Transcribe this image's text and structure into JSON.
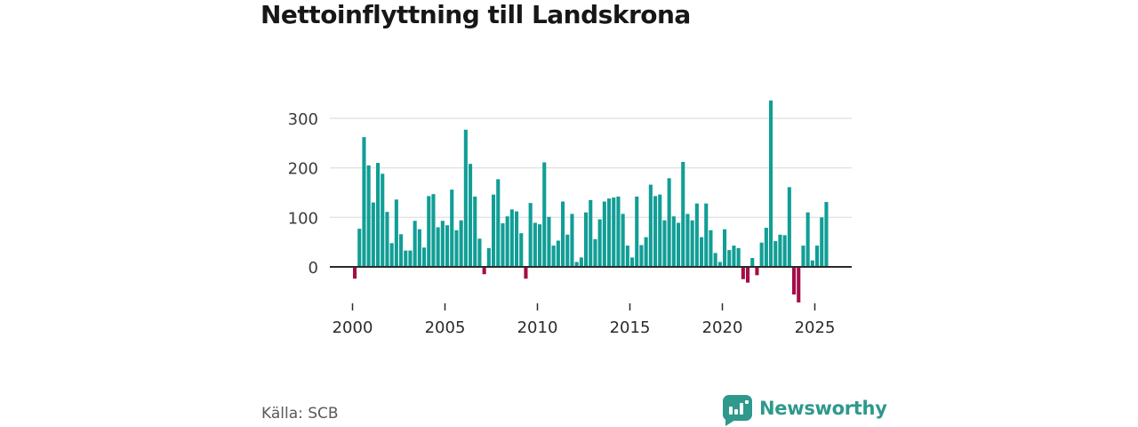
{
  "header": {
    "title": "Nettoinflyttning till Landskrona"
  },
  "footer": {
    "source_label": "Källa: SCB",
    "brand_name": "Newsworthy"
  },
  "colors": {
    "positive_bar": "#119E96",
    "negative_bar": "#A40D4A",
    "gridline": "#E3E3E3",
    "axis": "#2B2B2B",
    "tick_text": "#3C3C3C",
    "brand_teal": "#2E998C"
  },
  "chart_data": {
    "type": "bar",
    "title": "Nettoinflyttning till Landskrona",
    "frequency": "quarterly",
    "start_period": "2000-Q1",
    "end_period": "2025-Q3",
    "xlabel": "",
    "ylabel": "",
    "grid": true,
    "ylim": [
      -80,
      340
    ],
    "y_ticks": [
      0,
      100,
      200,
      300
    ],
    "x_tick_years": [
      2000,
      2005,
      2010,
      2015,
      2020,
      2025
    ],
    "positive_color": "#119E96",
    "negative_color": "#A40D4A",
    "values": [
      -22,
      77,
      262,
      205,
      130,
      210,
      188,
      111,
      48,
      136,
      66,
      33,
      33,
      93,
      76,
      39,
      143,
      147,
      80,
      93,
      84,
      156,
      74,
      94,
      277,
      208,
      142,
      57,
      -13,
      38,
      146,
      177,
      88,
      102,
      116,
      112,
      68,
      -22,
      129,
      89,
      86,
      211,
      101,
      43,
      53,
      132,
      65,
      107,
      10,
      19,
      110,
      135,
      56,
      96,
      132,
      138,
      140,
      142,
      107,
      43,
      19,
      142,
      44,
      60,
      166,
      143,
      146,
      94,
      179,
      102,
      89,
      212,
      107,
      94,
      128,
      60,
      128,
      74,
      28,
      10,
      76,
      34,
      43,
      38,
      -23,
      -30,
      18,
      -15,
      49,
      79,
      336,
      52,
      65,
      64,
      161,
      -54,
      -70,
      43,
      110,
      13,
      43,
      100,
      131
    ]
  }
}
